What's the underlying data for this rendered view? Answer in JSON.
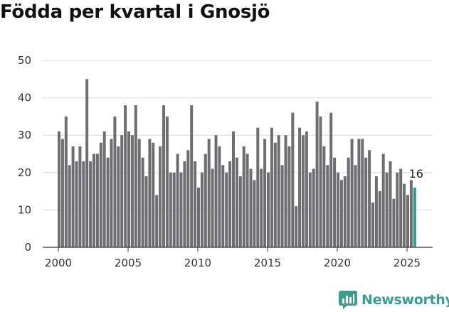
{
  "title": "Födda per kvartal i Gnosjö",
  "brand": {
    "name": "Newsworthy",
    "color": "#3a9e8e",
    "icon": "bar-chart-logo-icon"
  },
  "chart_data": {
    "type": "bar",
    "title": "Födda per kvartal i Gnosjö",
    "xlabel": "",
    "ylabel": "",
    "ylim": [
      0,
      50
    ],
    "y_ticks": [
      "0",
      "10",
      "20",
      "30",
      "40",
      "50"
    ],
    "x_ticks": [
      "2000",
      "2005",
      "2010",
      "2015",
      "2020",
      "2025"
    ],
    "grid": "horizontal",
    "bar_color": "#6e6d72",
    "highlight_color": "#2a9a8c",
    "x_start_year": 2000,
    "periods_per_year": 4,
    "values": [
      31,
      29,
      35,
      22,
      27,
      23,
      27,
      23,
      45,
      23,
      25,
      25,
      28,
      31,
      24,
      29,
      35,
      27,
      30,
      38,
      31,
      30,
      38,
      29,
      24,
      19,
      29,
      28,
      14,
      27,
      38,
      35,
      20,
      20,
      25,
      20,
      23,
      26,
      38,
      23,
      16,
      20,
      25,
      29,
      21,
      30,
      27,
      22,
      20,
      23,
      31,
      24,
      19,
      27,
      25,
      21,
      18,
      32,
      21,
      29,
      20,
      32,
      28,
      30,
      22,
      30,
      27,
      36,
      11,
      32,
      30,
      31,
      20,
      21,
      39,
      35,
      27,
      22,
      36,
      24,
      20,
      18,
      19,
      24,
      29,
      22,
      29,
      29,
      24,
      26,
      12,
      19,
      15,
      25,
      20,
      23,
      13,
      20,
      21,
      17,
      14,
      18,
      16
    ],
    "annotation": {
      "label": "16"
    }
  }
}
